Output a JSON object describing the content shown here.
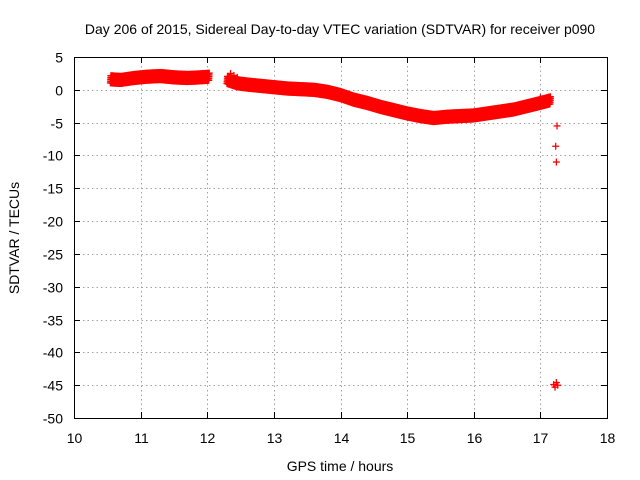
{
  "chart_data": {
    "type": "scatter",
    "title": "Day 206 of 2015, Sidereal Day-to-day VTEC variation (SDTVAR) for receiver p090",
    "xlabel": "GPS time / hours",
    "ylabel": "SDTVAR / TECUs",
    "xlim": [
      10,
      18
    ],
    "ylim": [
      -50,
      5
    ],
    "xticks": [
      "10",
      "11",
      "12",
      "13",
      "14",
      "15",
      "16",
      "17",
      "18"
    ],
    "yticks": [
      "5",
      "0",
      "-5",
      "-10",
      "-15",
      "-20",
      "-25",
      "-30",
      "-35",
      "-40",
      "-45",
      "-50"
    ],
    "grid": true,
    "point_color": "#ff0000",
    "trend_segments": [
      {
        "x": [
          10.55,
          10.7,
          10.9,
          11.1,
          11.3,
          11.5,
          11.7,
          11.9,
          12.03
        ],
        "y": [
          1.6,
          1.5,
          1.8,
          2.0,
          2.1,
          1.9,
          1.8,
          1.9,
          2.0
        ],
        "spread": 1.1
      },
      {
        "x": [
          12.3,
          12.45,
          12.6,
          12.8,
          13.0,
          13.2,
          13.4,
          13.6,
          13.8,
          14.0,
          14.2,
          14.4,
          14.6,
          14.8,
          15.0,
          15.2,
          15.4,
          15.6,
          15.8,
          16.0,
          16.2,
          16.4,
          16.6,
          16.8,
          17.0,
          17.15
        ],
        "y": [
          1.5,
          1.0,
          0.8,
          0.6,
          0.4,
          0.2,
          0.1,
          0.0,
          -0.3,
          -0.8,
          -1.5,
          -2.0,
          -2.6,
          -3.1,
          -3.6,
          -4.0,
          -4.3,
          -4.1,
          -4.0,
          -3.9,
          -3.6,
          -3.3,
          -3.0,
          -2.5,
          -2.0,
          -1.6
        ],
        "spread": 1.1
      }
    ],
    "isolated_points": {
      "x": [
        12.35,
        12.4,
        12.45,
        17.0,
        17.1,
        17.13,
        17.25,
        17.23,
        17.24,
        17.22,
        17.2,
        17.24,
        17.26
      ],
      "y": [
        2.5,
        2.2,
        1.9,
        -1.2,
        -1.5,
        -1.1,
        -5.5,
        -8.6,
        -11.0,
        -45.3,
        -44.9,
        -44.6,
        -45.0
      ]
    }
  }
}
